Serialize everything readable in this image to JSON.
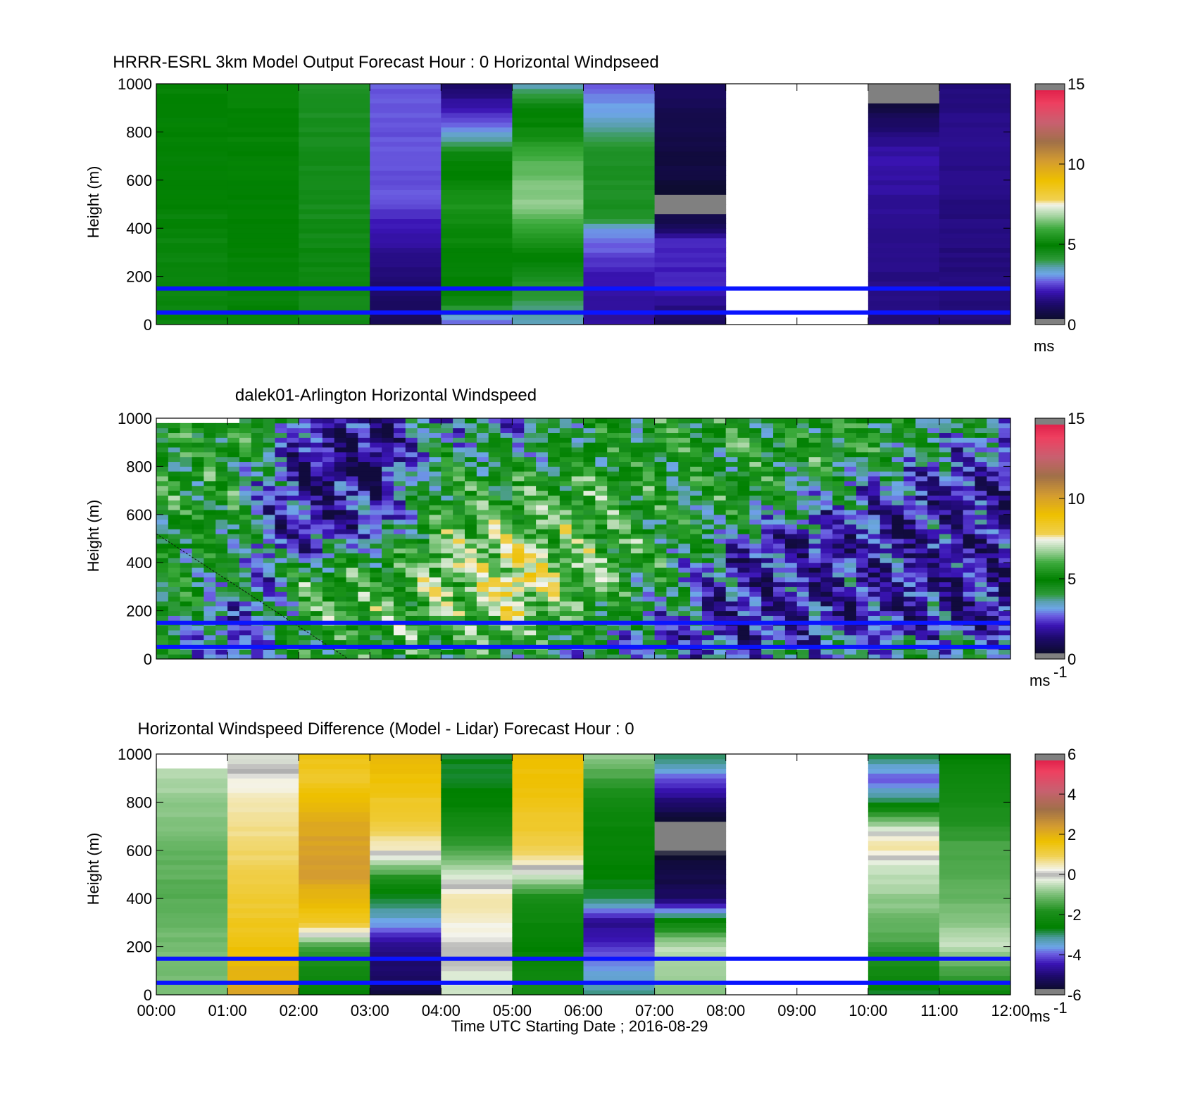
{
  "chart_data": [
    {
      "type": "heatmap",
      "title": "HRRR-ESRL 3km Model Output   Forecast Hour : 0 Horizontal Windpseed",
      "ylabel": "Height (m)",
      "xlabel": "",
      "ylim": [
        0,
        1000
      ],
      "yticks": [
        0,
        200,
        400,
        600,
        800,
        1000
      ],
      "x_hours": [
        "00:00",
        "01:00",
        "02:00",
        "03:00",
        "04:00",
        "05:00",
        "06:00",
        "07:00",
        "08:00",
        "09:00",
        "10:00",
        "11:00",
        "12:00"
      ],
      "colorbar": {
        "min": 0,
        "max": 15,
        "ticks": [
          0,
          5,
          10,
          15
        ],
        "unit": "ms",
        "unit_sup": "",
        "palette": "wind"
      },
      "reference_lines_m": [
        50,
        150
      ],
      "resolution": "hourly",
      "cells": [
        {
          "hour": 0,
          "profile": [
            [
              0,
              4.8
            ],
            [
              150,
              4.7
            ],
            [
              400,
              4.8
            ],
            [
              600,
              4.9
            ],
            [
              1000,
              5.0
            ]
          ]
        },
        {
          "hour": 1,
          "profile": [
            [
              0,
              4.8
            ],
            [
              400,
              4.9
            ],
            [
              800,
              5.0
            ],
            [
              1000,
              5.0
            ]
          ]
        },
        {
          "hour": 2,
          "profile": [
            [
              0,
              4.6
            ],
            [
              300,
              4.7
            ],
            [
              500,
              4.5
            ],
            [
              600,
              4.6
            ],
            [
              800,
              4.5
            ],
            [
              1000,
              4.3
            ]
          ]
        },
        {
          "hour": 3,
          "profile": [
            [
              0,
              1.0
            ],
            [
              200,
              1.4
            ],
            [
              400,
              2.0
            ],
            [
              500,
              2.6
            ],
            [
              1000,
              2.7
            ]
          ]
        },
        {
          "hour": 4,
          "profile": [
            [
              0,
              2.5
            ],
            [
              100,
              4.8
            ],
            [
              300,
              5.0
            ],
            [
              500,
              5.4
            ],
            [
              700,
              4.8
            ],
            [
              800,
              3.2
            ],
            [
              900,
              2.0
            ],
            [
              1000,
              1.2
            ]
          ]
        },
        {
          "hour": 5,
          "profile": [
            [
              0,
              3.6
            ],
            [
              200,
              4.4
            ],
            [
              400,
              5.8
            ],
            [
              500,
              6.6
            ],
            [
              650,
              6.3
            ],
            [
              800,
              5.2
            ],
            [
              900,
              4.8
            ],
            [
              1000,
              3.4
            ]
          ]
        },
        {
          "hour": 6,
          "profile": [
            [
              0,
              1.8
            ],
            [
              200,
              2.0
            ],
            [
              400,
              3.2
            ],
            [
              450,
              4.4
            ],
            [
              700,
              4.4
            ],
            [
              850,
              3.4
            ],
            [
              1000,
              2.7
            ]
          ]
        },
        {
          "hour": 7,
          "profile": [
            [
              0,
              1.0
            ],
            [
              150,
              2.2
            ],
            [
              350,
              2.2
            ],
            [
              400,
              1.0
            ],
            [
              450,
              0.8
            ],
            [
              500,
              -1
            ],
            [
              550,
              0.5
            ],
            [
              1000,
              1.1
            ]
          ]
        },
        {
          "hour": 8,
          "profile": "no data"
        },
        {
          "hour": 9,
          "profile": "no data"
        },
        {
          "hour": 10,
          "profile": [
            [
              0,
              1.4
            ],
            [
              200,
              1.6
            ],
            [
              500,
              1.8
            ],
            [
              700,
              2.0
            ],
            [
              800,
              1.5
            ],
            [
              900,
              0.7
            ],
            [
              1000,
              -1
            ]
          ]
        },
        {
          "hour": 11,
          "profile": [
            [
              0,
              1.4
            ],
            [
              300,
              1.5
            ],
            [
              600,
              1.6
            ],
            [
              800,
              1.7
            ],
            [
              1000,
              1.4
            ]
          ]
        }
      ]
    },
    {
      "type": "heatmap",
      "title": "dalek01-Arlington  Horizontal Windspeed",
      "ylabel": "Height (m)",
      "xlabel": "",
      "ylim": [
        0,
        1000
      ],
      "yticks": [
        0,
        200,
        400,
        600,
        800,
        1000
      ],
      "x_hours": [
        "00:00",
        "01:00",
        "02:00",
        "03:00",
        "04:00",
        "05:00",
        "06:00",
        "07:00",
        "08:00",
        "09:00",
        "10:00",
        "11:00",
        "12:00"
      ],
      "colorbar": {
        "min": 0,
        "max": 15,
        "ticks": [
          0,
          5,
          10,
          15
        ],
        "unit": "ms",
        "unit_sup": "-1",
        "palette": "wind"
      },
      "reference_lines_m": [
        50,
        150
      ],
      "resolution": "~10 min",
      "data_end_hour": 11.85,
      "cells": [
        {
          "hour": 0.0,
          "profile": [
            [
              0,
              4.5
            ],
            [
              200,
              4.7
            ],
            [
              600,
              5.0
            ],
            [
              1000,
              5.0
            ]
          ]
        },
        {
          "hour": 1.0,
          "profile": [
            [
              0,
              2.5
            ],
            [
              200,
              3.0
            ],
            [
              400,
              4.5
            ],
            [
              700,
              5.0
            ],
            [
              1000,
              5.0
            ]
          ]
        },
        {
          "hour": 1.5,
          "profile": [
            [
              0,
              3.0
            ],
            [
              300,
              3.5
            ],
            [
              500,
              2.5
            ],
            [
              700,
              3.0
            ],
            [
              1000,
              4.5
            ]
          ]
        },
        {
          "hour": 2.0,
          "profile": [
            [
              0,
              5.0
            ],
            [
              300,
              5.5
            ],
            [
              500,
              2.0
            ],
            [
              800,
              1.5
            ],
            [
              1000,
              2.5
            ]
          ]
        },
        {
          "hour": 3.0,
          "profile": [
            [
              0,
              5.0
            ],
            [
              200,
              6.0
            ],
            [
              400,
              5.0
            ],
            [
              600,
              2.0
            ],
            [
              800,
              1.2
            ],
            [
              1000,
              1.5
            ]
          ]
        },
        {
          "hour": 4.0,
          "profile": [
            [
              0,
              5.0
            ],
            [
              200,
              6.0
            ],
            [
              400,
              6.8
            ],
            [
              600,
              5.5
            ],
            [
              800,
              4.5
            ],
            [
              1000,
              3.5
            ]
          ]
        },
        {
          "hour": 5.0,
          "profile": [
            [
              0,
              4.5
            ],
            [
              200,
              7.0
            ],
            [
              300,
              8.0
            ],
            [
              450,
              7.0
            ],
            [
              600,
              6.0
            ],
            [
              800,
              5.0
            ],
            [
              1000,
              3.0
            ]
          ]
        },
        {
          "hour": 6.0,
          "profile": [
            [
              0,
              3.5
            ],
            [
              200,
              5.5
            ],
            [
              400,
              6.0
            ],
            [
              600,
              6.0
            ],
            [
              800,
              5.0
            ],
            [
              1000,
              4.5
            ]
          ]
        },
        {
          "hour": 7.0,
          "profile": [
            [
              0,
              3.5
            ],
            [
              100,
              2.5
            ],
            [
              200,
              3.5
            ],
            [
              400,
              5.0
            ],
            [
              600,
              5.0
            ],
            [
              800,
              5.0
            ],
            [
              1000,
              5.0
            ]
          ]
        },
        {
          "hour": 8.0,
          "profile": [
            [
              0,
              3.0
            ],
            [
              150,
              2.0
            ],
            [
              400,
              2.0
            ],
            [
              500,
              3.5
            ],
            [
              700,
              5.0
            ],
            [
              1000,
              5.0
            ]
          ]
        },
        {
          "hour": 9.0,
          "profile": [
            [
              0,
              3.5
            ],
            [
              150,
              2.0
            ],
            [
              500,
              2.0
            ],
            [
              620,
              3.5
            ],
            [
              800,
              5.0
            ],
            [
              1000,
              5.0
            ]
          ]
        },
        {
          "hour": 10.0,
          "profile": [
            [
              0,
              4.0
            ],
            [
              150,
              2.0
            ],
            [
              600,
              2.0
            ],
            [
              750,
              3.5
            ],
            [
              900,
              5.0
            ],
            [
              1000,
              5.0
            ]
          ]
        },
        {
          "hour": 11.0,
          "profile": [
            [
              0,
              4.0
            ],
            [
              150,
              2.0
            ],
            [
              700,
              2.0
            ],
            [
              850,
              3.0
            ],
            [
              1000,
              4.0
            ]
          ]
        }
      ]
    },
    {
      "type": "heatmap",
      "title": "Horizontal Windspeed Difference (Model - Lidar) Forecast Hour : 0",
      "ylabel": "Height (m)",
      "xlabel": "Time UTC  Starting Date ; 2016-08-29",
      "ylim": [
        0,
        1000
      ],
      "yticks": [
        0,
        200,
        400,
        600,
        800,
        1000
      ],
      "x_hours": [
        "00:00",
        "01:00",
        "02:00",
        "03:00",
        "04:00",
        "05:00",
        "06:00",
        "07:00",
        "08:00",
        "09:00",
        "10:00",
        "11:00",
        "12:00"
      ],
      "colorbar": {
        "min": -6,
        "max": 6,
        "ticks": [
          -6,
          -4,
          -2,
          0,
          2,
          4,
          6
        ],
        "unit": "ms",
        "unit_sup": "-1",
        "palette": "diff"
      },
      "reference_lines_m": [
        50,
        150
      ],
      "resolution": "hourly",
      "cells": [
        {
          "hour": 0,
          "profile": [
            [
              0,
              -1.0
            ],
            [
              200,
              -1.0
            ],
            [
              400,
              -1.3
            ],
            [
              600,
              -1.2
            ],
            [
              800,
              -0.8
            ],
            [
              940,
              -0.5
            ],
            [
              1000,
              "no data"
            ]
          ]
        },
        {
          "hour": 1,
          "profile": [
            [
              0,
              2.2
            ],
            [
              200,
              1.6
            ],
            [
              400,
              1.2
            ],
            [
              600,
              0.8
            ],
            [
              800,
              0.5
            ],
            [
              900,
              0.2
            ],
            [
              1000,
              -0.2
            ]
          ]
        },
        {
          "hour": 2,
          "profile": [
            [
              0,
              -2.6
            ],
            [
              200,
              -1.6
            ],
            [
              300,
              1.3
            ],
            [
              500,
              2.4
            ],
            [
              700,
              2.2
            ],
            [
              900,
              1.3
            ],
            [
              1000,
              1.5
            ]
          ]
        },
        {
          "hour": 3,
          "profile": [
            [
              0,
              -5.5
            ],
            [
              200,
              -4.8
            ],
            [
              300,
              -3.6
            ],
            [
              450,
              -2.4
            ],
            [
              600,
              0.3
            ],
            [
              700,
              1.1
            ],
            [
              900,
              1.6
            ],
            [
              1000,
              1.9
            ]
          ]
        },
        {
          "hour": 4,
          "profile": [
            [
              0,
              -0.5
            ],
            [
              200,
              0.1
            ],
            [
              400,
              0.6
            ],
            [
              600,
              -1.4
            ],
            [
              800,
              -2.6
            ],
            [
              1000,
              -2.8
            ]
          ]
        },
        {
          "hour": 5,
          "profile": [
            [
              0,
              -2.0
            ],
            [
              200,
              -2.6
            ],
            [
              400,
              -2.0
            ],
            [
              500,
              -0.3
            ],
            [
              600,
              1.0
            ],
            [
              800,
              1.5
            ],
            [
              1000,
              1.7
            ]
          ]
        },
        {
          "hour": 6,
          "profile": [
            [
              0,
              -3.0
            ],
            [
              300,
              -4.8
            ],
            [
              400,
              -2.8
            ],
            [
              600,
              -2.5
            ],
            [
              800,
              -2.2
            ],
            [
              1000,
              -0.8
            ]
          ]
        },
        {
          "hour": 7,
          "profile": [
            [
              0,
              -1.0
            ],
            [
              200,
              -0.5
            ],
            [
              300,
              -2.2
            ],
            [
              400,
              -5.2
            ],
            [
              700,
              -6.0
            ],
            [
              850,
              -4.5
            ],
            [
              1000,
              -2.8
            ]
          ]
        },
        {
          "hour": 8,
          "profile": "no data"
        },
        {
          "hour": 9,
          "profile": "no data"
        },
        {
          "hour": 10,
          "profile": [
            [
              0,
              -2.8
            ],
            [
              200,
              -1.5
            ],
            [
              400,
              -0.8
            ],
            [
              550,
              -0.3
            ],
            [
              620,
              0.7
            ],
            [
              700,
              -0.5
            ],
            [
              800,
              -2.8
            ],
            [
              900,
              -4.0
            ],
            [
              1000,
              -2.8
            ]
          ]
        },
        {
          "hour": 11,
          "profile": [
            [
              0,
              -2.4
            ],
            [
              200,
              -0.5
            ],
            [
              400,
              -1.2
            ],
            [
              600,
              -1.4
            ],
            [
              800,
              -2.0
            ],
            [
              1000,
              -2.6
            ]
          ]
        }
      ]
    }
  ]
}
